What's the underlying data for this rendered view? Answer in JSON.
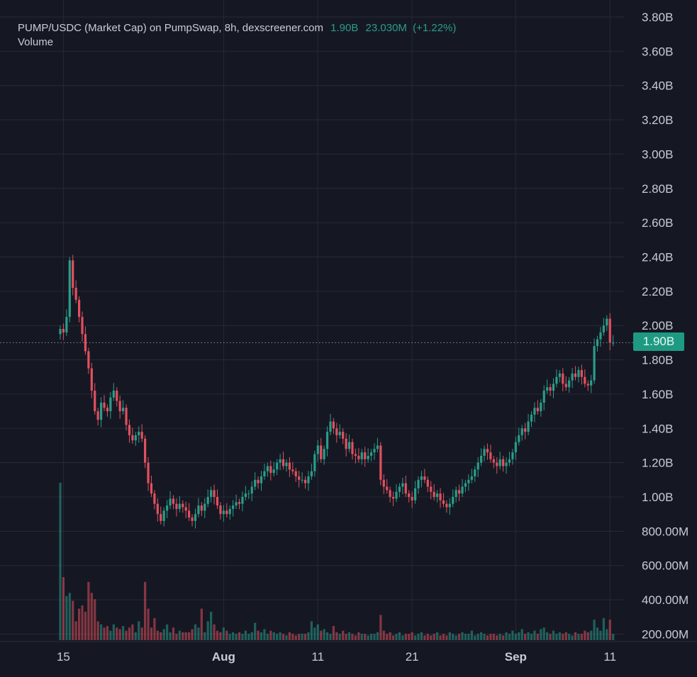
{
  "header": {
    "title": "PUMP/USDC (Market Cap) on PumpSwap, 8h, dexscreener.com",
    "last_value": "1.90B",
    "change_abs": "23.030M",
    "change_pct": "(+1.22%)",
    "volume_label": "Volume"
  },
  "colors": {
    "background": "#151823",
    "up": "#2a9d8a",
    "down": "#e2505f",
    "grid": "#262a36",
    "price_tag": "#1e9a83"
  },
  "chart_data": {
    "type": "candlestick",
    "interval": "8h",
    "ylabel": "",
    "ylim": [
      0.18,
      3.84
    ],
    "y_unit": "B",
    "grid": true,
    "y_ticks": [
      {
        "value": 3.8,
        "label": "3.80B"
      },
      {
        "value": 3.6,
        "label": "3.60B"
      },
      {
        "value": 3.4,
        "label": "3.40B"
      },
      {
        "value": 3.2,
        "label": "3.20B"
      },
      {
        "value": 3.0,
        "label": "3.00B"
      },
      {
        "value": 2.8,
        "label": "2.80B"
      },
      {
        "value": 2.6,
        "label": "2.60B"
      },
      {
        "value": 2.4,
        "label": "2.40B"
      },
      {
        "value": 2.2,
        "label": "2.20B"
      },
      {
        "value": 2.0,
        "label": "2.00B"
      },
      {
        "value": 1.8,
        "label": "1.80B"
      },
      {
        "value": 1.6,
        "label": "1.60B"
      },
      {
        "value": 1.4,
        "label": "1.40B"
      },
      {
        "value": 1.2,
        "label": "1.20B"
      },
      {
        "value": 1.0,
        "label": "1.00B"
      },
      {
        "value": 0.8,
        "label": "800.00M"
      },
      {
        "value": 0.6,
        "label": "600.00M"
      },
      {
        "value": 0.4,
        "label": "400.00M"
      },
      {
        "value": 0.2,
        "label": "200.00M"
      }
    ],
    "x_ticks": [
      {
        "label": "15",
        "date": "Jul 15"
      },
      {
        "label": "Aug",
        "date": "Aug 1"
      },
      {
        "label": "11",
        "date": "Aug 11"
      },
      {
        "label": "21",
        "date": "Aug 21"
      },
      {
        "label": "Sep",
        "date": "Sep 1"
      },
      {
        "label": "11",
        "date": "Sep 11"
      }
    ],
    "current_price": {
      "value": 1.9,
      "label": "1.90B"
    },
    "first_open": 1.95,
    "close": [
      1.98,
      1.96,
      2.05,
      2.38,
      2.22,
      2.15,
      2.05,
      1.95,
      1.85,
      1.75,
      1.62,
      1.5,
      1.45,
      1.55,
      1.52,
      1.5,
      1.58,
      1.62,
      1.56,
      1.5,
      1.52,
      1.42,
      1.36,
      1.33,
      1.36,
      1.38,
      1.34,
      1.2,
      1.08,
      1.02,
      0.96,
      0.9,
      0.86,
      0.92,
      0.95,
      0.99,
      0.96,
      0.93,
      0.96,
      0.94,
      0.92,
      0.88,
      0.86,
      0.9,
      0.95,
      0.92,
      0.96,
      1.0,
      1.04,
      1.0,
      0.95,
      0.9,
      0.92,
      0.9,
      0.93,
      0.95,
      0.97,
      0.96,
      1.0,
      1.02,
      1.02,
      1.06,
      1.1,
      1.08,
      1.12,
      1.15,
      1.18,
      1.14,
      1.16,
      1.2,
      1.22,
      1.18,
      1.2,
      1.16,
      1.15,
      1.12,
      1.1,
      1.1,
      1.08,
      1.12,
      1.15,
      1.25,
      1.3,
      1.22,
      1.28,
      1.38,
      1.44,
      1.4,
      1.36,
      1.38,
      1.34,
      1.28,
      1.32,
      1.25,
      1.24,
      1.22,
      1.26,
      1.22,
      1.24,
      1.26,
      1.28,
      1.3,
      1.1,
      1.06,
      1.04,
      1.0,
      0.99,
      1.03,
      1.06,
      1.08,
      1.02,
      1.0,
      0.98,
      1.05,
      1.1,
      1.12,
      1.1,
      1.06,
      1.03,
      1.0,
      1.02,
      0.98,
      0.96,
      0.94,
      0.96,
      1.0,
      1.04,
      1.02,
      1.06,
      1.08,
      1.1,
      1.12,
      1.16,
      1.2,
      1.24,
      1.28,
      1.26,
      1.22,
      1.2,
      1.18,
      1.22,
      1.18,
      1.2,
      1.22,
      1.26,
      1.32,
      1.36,
      1.4,
      1.38,
      1.44,
      1.48,
      1.52,
      1.5,
      1.55,
      1.62,
      1.64,
      1.62,
      1.66,
      1.7,
      1.72,
      1.66,
      1.64,
      1.68,
      1.72,
      1.7,
      1.74,
      1.7,
      1.66,
      1.65,
      1.68,
      1.88,
      1.92,
      1.96,
      2.0,
      2.04,
      1.9,
      1.9
    ],
    "volume_relative": [
      1.0,
      0.4,
      0.28,
      0.3,
      0.25,
      0.12,
      0.2,
      0.22,
      0.18,
      0.37,
      0.3,
      0.26,
      0.12,
      0.1,
      0.08,
      0.09,
      0.06,
      0.1,
      0.08,
      0.07,
      0.09,
      0.06,
      0.08,
      0.1,
      0.05,
      0.12,
      0.08,
      0.37,
      0.2,
      0.08,
      0.14,
      0.06,
      0.05,
      0.07,
      0.1,
      0.05,
      0.08,
      0.04,
      0.06,
      0.05,
      0.05,
      0.05,
      0.07,
      0.1,
      0.08,
      0.2,
      0.05,
      0.12,
      0.18,
      0.1,
      0.06,
      0.05,
      0.08,
      0.06,
      0.04,
      0.05,
      0.04,
      0.05,
      0.04,
      0.06,
      0.04,
      0.05,
      0.11,
      0.06,
      0.05,
      0.07,
      0.04,
      0.06,
      0.05,
      0.04,
      0.05,
      0.04,
      0.03,
      0.05,
      0.04,
      0.03,
      0.04,
      0.04,
      0.04,
      0.05,
      0.12,
      0.08,
      0.1,
      0.06,
      0.07,
      0.05,
      0.04,
      0.09,
      0.05,
      0.04,
      0.06,
      0.04,
      0.05,
      0.04,
      0.03,
      0.05,
      0.04,
      0.04,
      0.03,
      0.04,
      0.04,
      0.05,
      0.16,
      0.06,
      0.04,
      0.05,
      0.03,
      0.04,
      0.05,
      0.03,
      0.04,
      0.04,
      0.05,
      0.03,
      0.04,
      0.05,
      0.03,
      0.04,
      0.03,
      0.04,
      0.05,
      0.03,
      0.04,
      0.03,
      0.05,
      0.04,
      0.03,
      0.04,
      0.05,
      0.04,
      0.04,
      0.06,
      0.03,
      0.04,
      0.05,
      0.04,
      0.03,
      0.04,
      0.04,
      0.03,
      0.04,
      0.03,
      0.05,
      0.04,
      0.06,
      0.04,
      0.05,
      0.07,
      0.04,
      0.05,
      0.04,
      0.06,
      0.04,
      0.07,
      0.08,
      0.05,
      0.04,
      0.06,
      0.04,
      0.05,
      0.04,
      0.05,
      0.04,
      0.03,
      0.05,
      0.04,
      0.04,
      0.06,
      0.05,
      0.06,
      0.13,
      0.08,
      0.06,
      0.14,
      0.07,
      0.13,
      0.04
    ]
  }
}
